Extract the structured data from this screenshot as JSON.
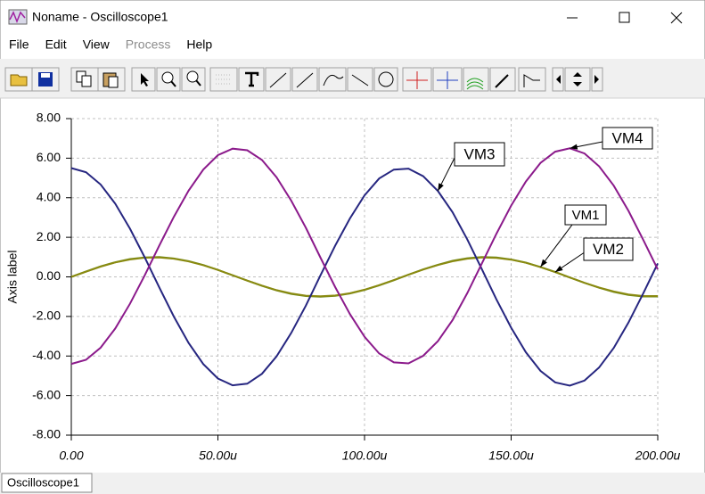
{
  "window": {
    "title": "Noname - Oscilloscope1"
  },
  "menu": [
    "File",
    "Edit",
    "View",
    "Process",
    "Help"
  ],
  "tab": "Oscilloscope1",
  "chart_data": {
    "type": "line",
    "ylabel": "Axis label",
    "x": [
      0,
      5,
      10,
      15,
      20,
      25,
      30,
      35,
      40,
      45,
      50,
      55,
      60,
      65,
      70,
      75,
      80,
      85,
      90,
      95,
      100,
      105,
      110,
      115,
      120,
      125,
      130,
      135,
      140,
      145,
      150,
      155,
      160,
      165,
      170,
      175,
      180,
      185,
      190,
      195,
      200
    ],
    "series": [
      {
        "name": "VM1",
        "color": "#6a8a1e",
        "values": [
          0,
          0.27,
          0.53,
          0.74,
          0.9,
          0.98,
          1.0,
          0.93,
          0.8,
          0.6,
          0.35,
          0.08,
          -0.19,
          -0.45,
          -0.68,
          -0.86,
          -0.97,
          -1.0,
          -0.96,
          -0.84,
          -0.66,
          -0.43,
          -0.17,
          0.11,
          0.38,
          0.61,
          0.81,
          0.94,
          1.0,
          0.98,
          0.88,
          0.72,
          0.5,
          0.25,
          -0.03,
          -0.3,
          -0.55,
          -0.76,
          -0.91,
          -0.99,
          -0.99
        ]
      },
      {
        "name": "VM2",
        "color": "#8a8a10",
        "values": [
          0,
          0.26,
          0.52,
          0.73,
          0.88,
          0.97,
          0.98,
          0.92,
          0.78,
          0.59,
          0.35,
          0.08,
          -0.19,
          -0.44,
          -0.67,
          -0.84,
          -0.95,
          -0.98,
          -0.94,
          -0.83,
          -0.65,
          -0.42,
          -0.16,
          0.11,
          0.37,
          0.6,
          0.79,
          0.92,
          0.98,
          0.96,
          0.87,
          0.71,
          0.49,
          0.24,
          -0.03,
          -0.3,
          -0.54,
          -0.74,
          -0.89,
          -0.97,
          -0.97
        ]
      },
      {
        "name": "VM3",
        "color": "#262680",
        "values": [
          5.5,
          5.29,
          4.67,
          3.7,
          2.44,
          0.99,
          -0.53,
          -2.01,
          -3.34,
          -4.41,
          -5.14,
          -5.48,
          -5.4,
          -4.9,
          -4.02,
          -2.83,
          -1.45,
          0.08,
          1.58,
          2.95,
          4.12,
          4.97,
          5.42,
          5.47,
          5.09,
          4.34,
          3.27,
          1.9,
          0.39,
          -1.14,
          -2.57,
          -3.81,
          -4.75,
          -5.33,
          -5.5,
          -5.24,
          -4.58,
          -3.59,
          -2.31,
          -0.85,
          0.68
        ]
      },
      {
        "name": "VM4",
        "color": "#8b1a8b",
        "values": [
          -4.4,
          -4.19,
          -3.58,
          -2.61,
          -1.36,
          0.07,
          1.58,
          3.04,
          4.36,
          5.42,
          6.15,
          6.48,
          6.4,
          5.91,
          5.03,
          3.85,
          2.48,
          0.97,
          -0.52,
          -1.88,
          -3.03,
          -3.87,
          -4.32,
          -4.37,
          -3.99,
          -3.25,
          -2.19,
          -0.83,
          0.67,
          2.18,
          3.6,
          4.82,
          5.76,
          6.33,
          6.5,
          6.24,
          5.59,
          4.61,
          3.34,
          1.89,
          0.38
        ]
      }
    ],
    "xlim": [
      0,
      200
    ],
    "xticks": [
      {
        "value": 0,
        "label": "0.00"
      },
      {
        "value": 50,
        "label": "50.00u"
      },
      {
        "value": 100,
        "label": "100.00u"
      },
      {
        "value": 150,
        "label": "150.00u"
      },
      {
        "value": 200,
        "label": "200.00u"
      }
    ],
    "ylim": [
      -8,
      8
    ],
    "yticks": [
      {
        "value": -8,
        "label": "-8.00"
      },
      {
        "value": -6,
        "label": "-6.00"
      },
      {
        "value": -4,
        "label": "-4.00"
      },
      {
        "value": -2,
        "label": "-2.00"
      },
      {
        "value": 0,
        "label": "0.00"
      },
      {
        "value": 2,
        "label": "2.00"
      },
      {
        "value": 4,
        "label": "4.00"
      },
      {
        "value": 6,
        "label": "6.00"
      },
      {
        "value": 8,
        "label": "8.00"
      }
    ],
    "grid": true
  }
}
